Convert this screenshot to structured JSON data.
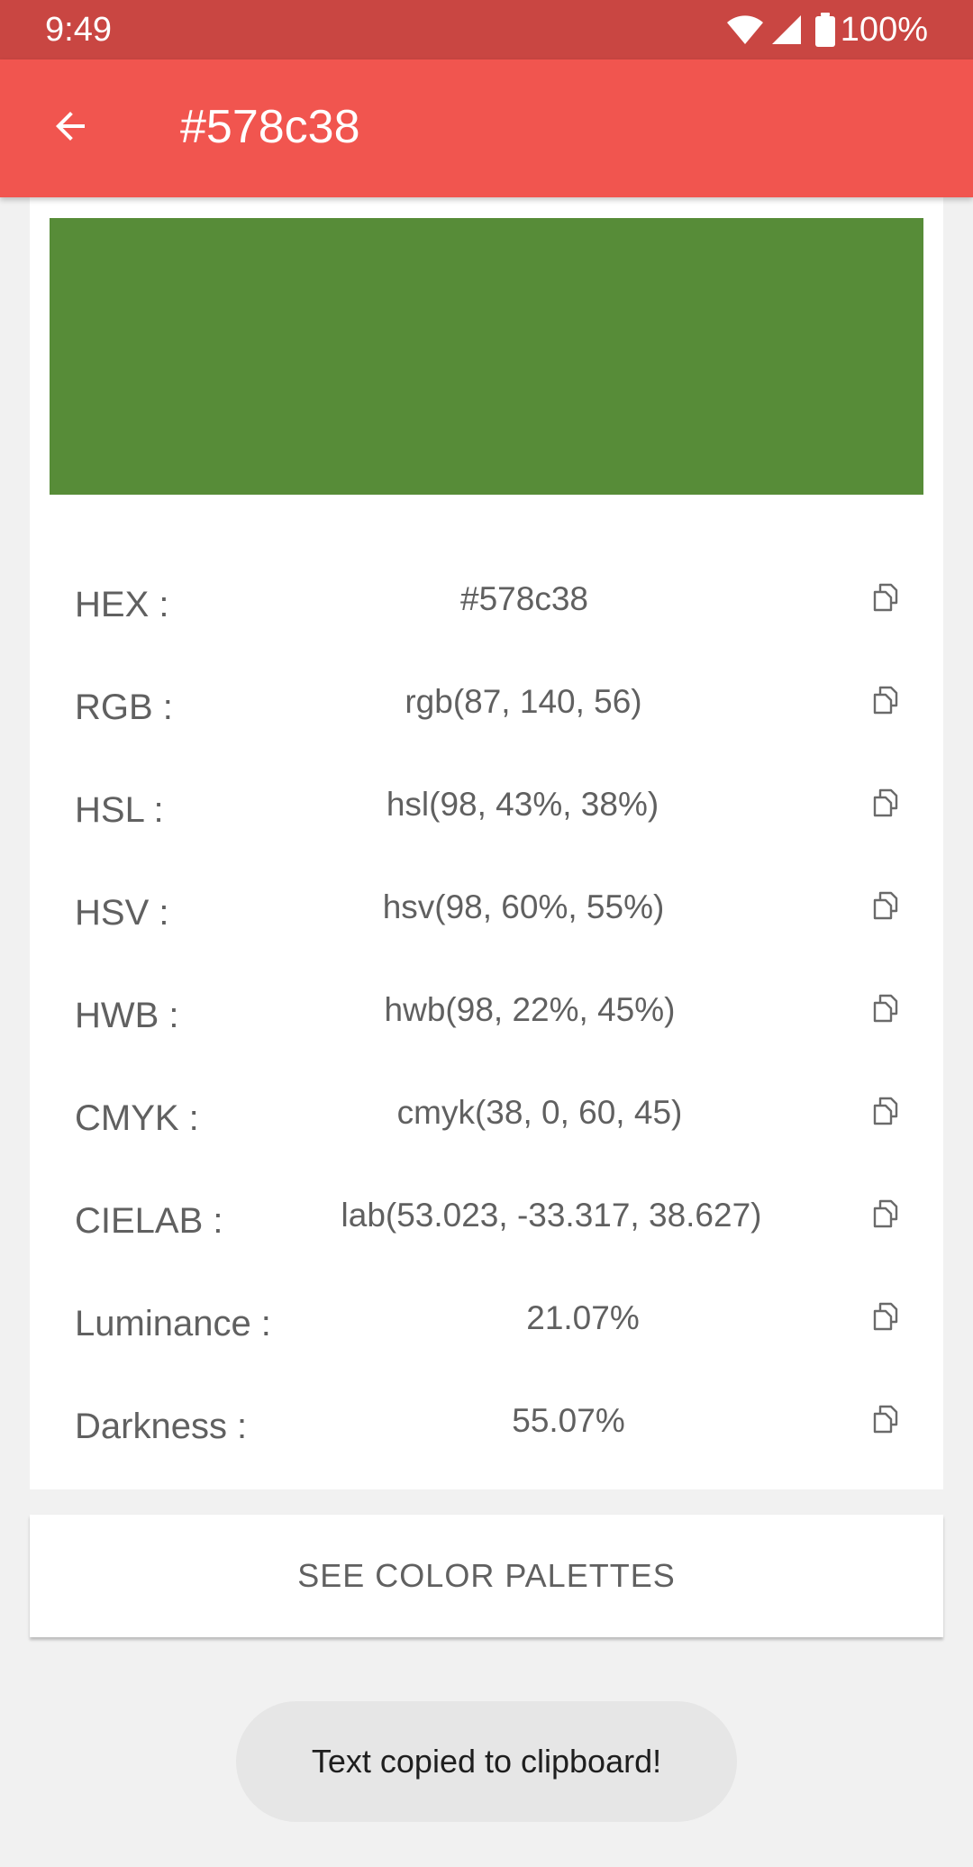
{
  "status_bar": {
    "time": "9:49",
    "battery": "100%",
    "icons": [
      "wifi-icon",
      "signal-icon",
      "battery-icon"
    ]
  },
  "app_bar": {
    "title": "#578c38",
    "back_icon": "arrow-back-icon"
  },
  "swatch": {
    "color": "#578c38"
  },
  "colors": {
    "status_bar": "#c94642",
    "app_bar": "#f1554f",
    "background": "#f1f1f1",
    "text": "#606060"
  },
  "rows": [
    {
      "label": "HEX :",
      "value": "#578c38"
    },
    {
      "label": "RGB :",
      "value": "rgb(87, 140, 56)"
    },
    {
      "label": "HSL :",
      "value": "hsl(98, 43%, 38%)"
    },
    {
      "label": "HSV :",
      "value": "hsv(98, 60%, 55%)"
    },
    {
      "label": "HWB :",
      "value": "hwb(98, 22%, 45%)"
    },
    {
      "label": "CMYK :",
      "value": "cmyk(38, 0, 60, 45)"
    },
    {
      "label": "CIELAB :",
      "value": "lab(53.023, -33.317, 38.627)"
    },
    {
      "label": "Luminance :",
      "value": "21.07%"
    },
    {
      "label": "Darkness :",
      "value": "55.07%"
    }
  ],
  "palette_button": {
    "label": "SEE COLOR PALETTES"
  },
  "toast": {
    "text": "Text copied to clipboard!"
  }
}
